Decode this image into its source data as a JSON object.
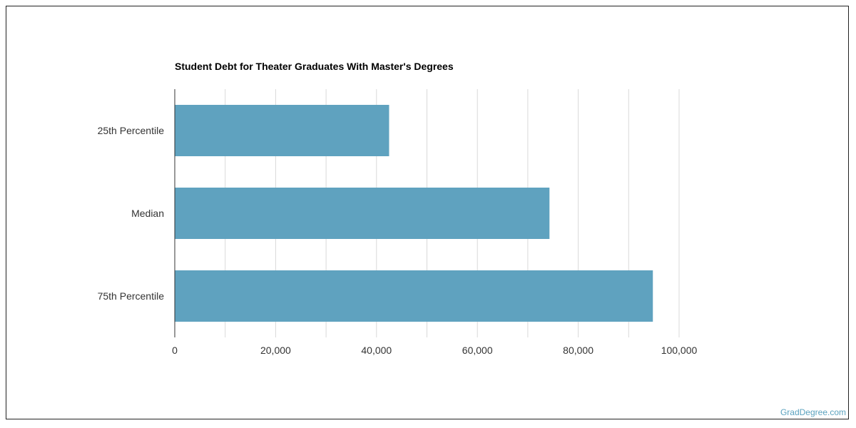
{
  "chart_data": {
    "type": "bar",
    "orientation": "horizontal",
    "title": "Student Debt for Theater Graduates With Master's Degrees",
    "xlabel": "",
    "ylabel": "",
    "categories": [
      "25th Percentile",
      "Median",
      "75th Percentile"
    ],
    "values": [
      42500,
      74300,
      94800
    ],
    "xlim": [
      0,
      110000
    ],
    "ticks": [
      0,
      20000,
      40000,
      60000,
      80000,
      100000
    ],
    "tick_labels": [
      "0",
      "20,000",
      "40,000",
      "60,000",
      "80,000",
      "100,000"
    ],
    "grid": true,
    "bar_color": "#5fa2bf",
    "grid_color": "#d9d9d9"
  },
  "watermark": "GradDegree.com"
}
